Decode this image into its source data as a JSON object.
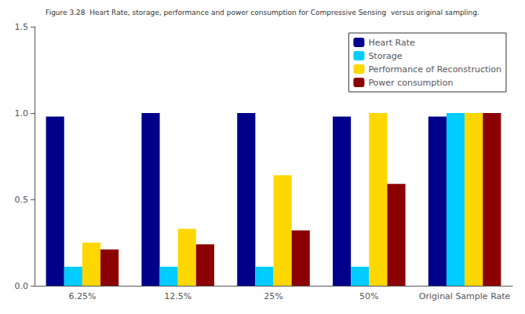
{
  "chart_data": {
    "type": "bar",
    "title": "Figure 3.28  Heart Rate, storage, performance and power consumption for Compressive Sensing  versus original sampling.",
    "categories": [
      "6.25%",
      "12.5%",
      "25%",
      "50%",
      "Original Sample Rate"
    ],
    "series": [
      {
        "name": "Heart Rate",
        "color": "#00008B",
        "values": [
          0.98,
          1.0,
          1.0,
          0.98,
          0.98
        ]
      },
      {
        "name": "Storage",
        "color": "#00CCFF",
        "values": [
          0.11,
          0.11,
          0.11,
          0.11,
          1.0
        ]
      },
      {
        "name": "Performance of Reconstruction",
        "color": "#FFD700",
        "values": [
          0.25,
          0.33,
          0.64,
          1.0,
          1.0
        ]
      },
      {
        "name": "Power consumption",
        "color": "#8B0000",
        "values": [
          0.21,
          0.24,
          0.32,
          0.59,
          1.0
        ]
      }
    ],
    "ylim": [
      0,
      1.5
    ],
    "yticks": [
      {
        "value": 0,
        "label": "0.0"
      },
      0.5,
      {
        "value": 1.0,
        "label": "1.0"
      },
      1.5
    ],
    "grid": false,
    "legend": "upper right"
  }
}
